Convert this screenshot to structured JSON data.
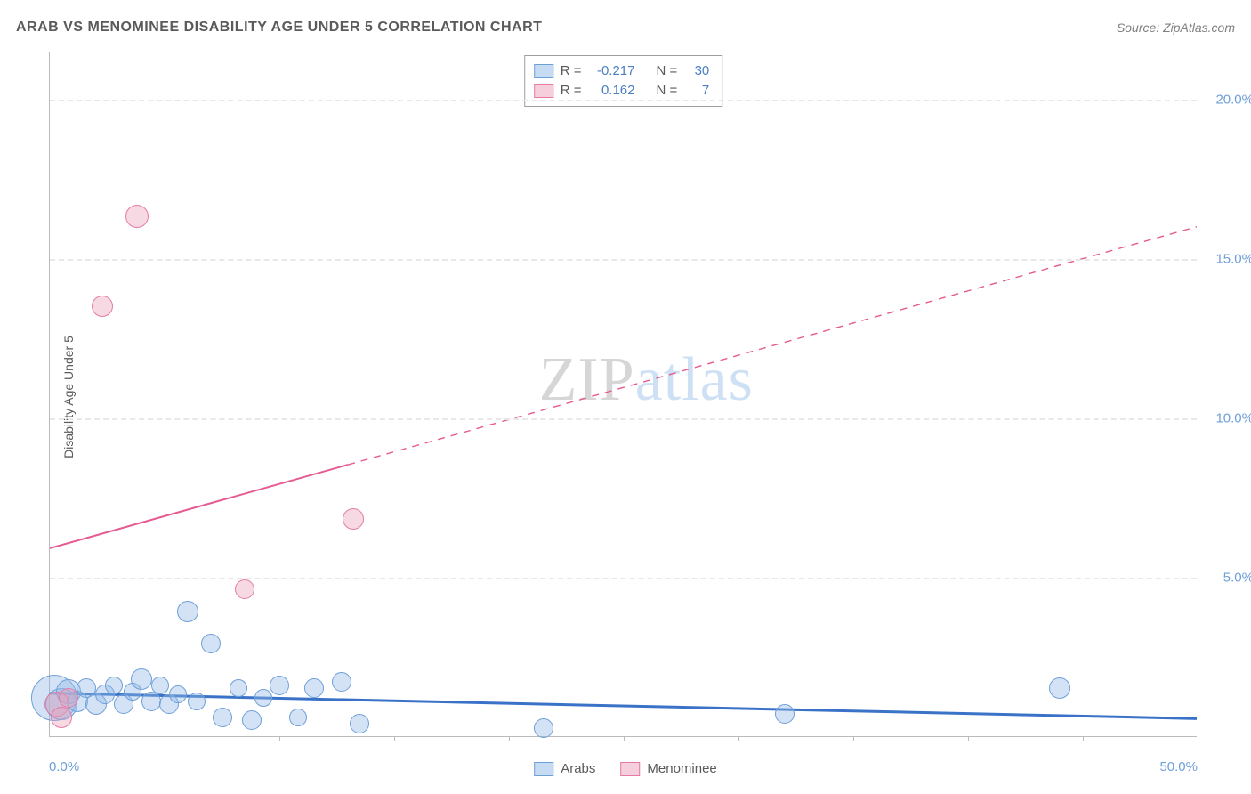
{
  "title": "ARAB VS MENOMINEE DISABILITY AGE UNDER 5 CORRELATION CHART",
  "source": "Source: ZipAtlas.com",
  "y_axis_label": "Disability Age Under 5",
  "watermark": {
    "part1": "ZIP",
    "part2": "atlas"
  },
  "chart": {
    "type": "scatter",
    "background_color": "#ffffff",
    "grid_color": "#e8e8e8",
    "axis_color": "#bbbbbb",
    "text_color": "#5a5a5a",
    "tick_label_color": "#6f9fd8",
    "label_fontsize": 14,
    "tick_fontsize": 15,
    "xlim": [
      0,
      50
    ],
    "ylim": [
      0,
      21.5
    ],
    "x_min_label": "0.0%",
    "x_max_label": "50.0%",
    "y_ticks": [
      {
        "value": 5.0,
        "label": "5.0%"
      },
      {
        "value": 10.0,
        "label": "10.0%"
      },
      {
        "value": 15.0,
        "label": "15.0%"
      },
      {
        "value": 20.0,
        "label": "20.0%"
      }
    ],
    "x_tick_positions": [
      5,
      10,
      15,
      20,
      25,
      30,
      35,
      40,
      45
    ],
    "series": [
      {
        "key": "arabs",
        "label": "Arabs",
        "fill_color": "rgba(144,186,230,0.40)",
        "stroke_color": "#6f9fd8",
        "r_value": "-0.217",
        "n_value": "30",
        "trend": {
          "x1": 0,
          "y1": 1.35,
          "x2": 50,
          "y2": 0.55,
          "solid_until_x": 50,
          "color": "#3a72c8",
          "width": 3
        },
        "points": [
          {
            "x": 0.2,
            "y": 1.2,
            "r": 26
          },
          {
            "x": 0.5,
            "y": 1.0,
            "r": 18
          },
          {
            "x": 0.8,
            "y": 1.4,
            "r": 14
          },
          {
            "x": 1.2,
            "y": 1.1,
            "r": 12
          },
          {
            "x": 1.6,
            "y": 1.5,
            "r": 11
          },
          {
            "x": 2.0,
            "y": 1.0,
            "r": 12
          },
          {
            "x": 2.4,
            "y": 1.3,
            "r": 11
          },
          {
            "x": 2.8,
            "y": 1.6,
            "r": 10
          },
          {
            "x": 3.2,
            "y": 1.0,
            "r": 11
          },
          {
            "x": 3.6,
            "y": 1.4,
            "r": 10
          },
          {
            "x": 4.0,
            "y": 1.8,
            "r": 12
          },
          {
            "x": 4.4,
            "y": 1.1,
            "r": 11
          },
          {
            "x": 4.8,
            "y": 1.6,
            "r": 10
          },
          {
            "x": 5.2,
            "y": 1.0,
            "r": 11
          },
          {
            "x": 5.6,
            "y": 1.3,
            "r": 10
          },
          {
            "x": 6.0,
            "y": 3.9,
            "r": 12
          },
          {
            "x": 6.4,
            "y": 1.1,
            "r": 10
          },
          {
            "x": 7.0,
            "y": 2.9,
            "r": 11
          },
          {
            "x": 7.5,
            "y": 0.6,
            "r": 11
          },
          {
            "x": 8.2,
            "y": 1.5,
            "r": 10
          },
          {
            "x": 8.8,
            "y": 0.5,
            "r": 11
          },
          {
            "x": 9.3,
            "y": 1.2,
            "r": 10
          },
          {
            "x": 10.0,
            "y": 1.6,
            "r": 11
          },
          {
            "x": 10.8,
            "y": 0.6,
            "r": 10
          },
          {
            "x": 11.5,
            "y": 1.5,
            "r": 11
          },
          {
            "x": 12.7,
            "y": 1.7,
            "r": 11
          },
          {
            "x": 13.5,
            "y": 0.4,
            "r": 11
          },
          {
            "x": 21.5,
            "y": 0.25,
            "r": 11
          },
          {
            "x": 32.0,
            "y": 0.7,
            "r": 11
          },
          {
            "x": 44.0,
            "y": 1.5,
            "r": 12
          }
        ]
      },
      {
        "key": "menominee",
        "label": "Menominee",
        "fill_color": "rgba(236,160,186,0.40)",
        "stroke_color": "#e57ba5",
        "r_value": "0.162",
        "n_value": "7",
        "trend": {
          "x1": 0,
          "y1": 5.9,
          "x2": 50,
          "y2": 16.0,
          "solid_until_x": 13,
          "color": "#e65a92",
          "width": 2
        },
        "points": [
          {
            "x": 0.3,
            "y": 1.0,
            "r": 14
          },
          {
            "x": 0.5,
            "y": 0.6,
            "r": 12
          },
          {
            "x": 0.8,
            "y": 1.2,
            "r": 11
          },
          {
            "x": 2.3,
            "y": 13.5,
            "r": 12
          },
          {
            "x": 3.8,
            "y": 16.3,
            "r": 13
          },
          {
            "x": 8.5,
            "y": 4.6,
            "r": 11
          },
          {
            "x": 13.2,
            "y": 6.8,
            "r": 12
          }
        ]
      }
    ]
  },
  "legend_corr": {
    "r_label": "R =",
    "n_label": "N ="
  },
  "legend_bottom": [
    {
      "label": "Arabs",
      "swatch_class": "swatch-arab"
    },
    {
      "label": "Menominee",
      "swatch_class": "swatch-meno"
    }
  ]
}
